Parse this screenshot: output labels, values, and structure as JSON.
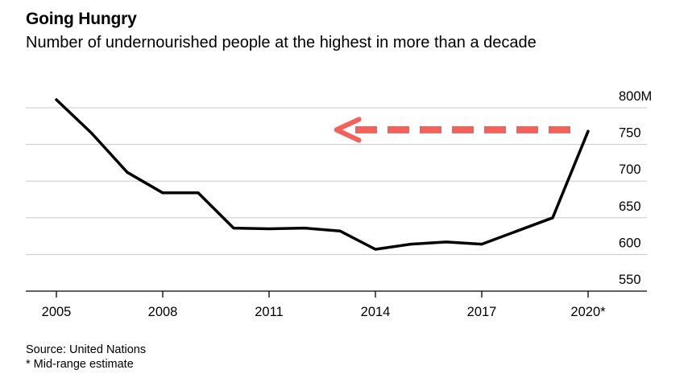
{
  "chart_data": {
    "type": "line",
    "title": "Going Hungry",
    "subtitle": "Number of undernourished people at the highest in more than a decade",
    "x": [
      2005,
      2006,
      2007,
      2008,
      2009,
      2010,
      2011,
      2012,
      2013,
      2014,
      2015,
      2016,
      2017,
      2018,
      2019,
      2020
    ],
    "series": [
      {
        "values": [
          811,
          765,
          712,
          684,
          684,
          636,
          635,
          636,
          632,
          607,
          614,
          617,
          614,
          632,
          650,
          768
        ]
      }
    ],
    "x_ticks": [
      {
        "value": 2005,
        "label": "2005"
      },
      {
        "value": 2008,
        "label": "2008"
      },
      {
        "value": 2011,
        "label": "2011"
      },
      {
        "value": 2014,
        "label": "2014"
      },
      {
        "value": 2017,
        "label": "2017"
      },
      {
        "value": 2020,
        "label": "2020*"
      }
    ],
    "y_ticks": [
      {
        "value": 800,
        "label": "800M"
      },
      {
        "value": 750,
        "label": "750"
      },
      {
        "value": 700,
        "label": "700"
      },
      {
        "value": 650,
        "label": "650"
      },
      {
        "value": 600,
        "label": "600"
      },
      {
        "value": 550,
        "label": "550"
      }
    ],
    "xlim": [
      2005,
      2020
    ],
    "ylim": [
      550,
      800
    ],
    "grid": true,
    "line_color": "#000000",
    "annotation": {
      "type": "dashed-arrow",
      "direction": "left",
      "color": "#f4615a",
      "from_year": 2019.5,
      "to_year": 2012.9,
      "level": 770
    }
  },
  "footnotes": {
    "source": "Source: United Nations",
    "note": "* Mid-range estimate"
  },
  "colors": {
    "grid": "#c9c9c9",
    "axis": "#000000",
    "arrow": "#f4615a"
  }
}
